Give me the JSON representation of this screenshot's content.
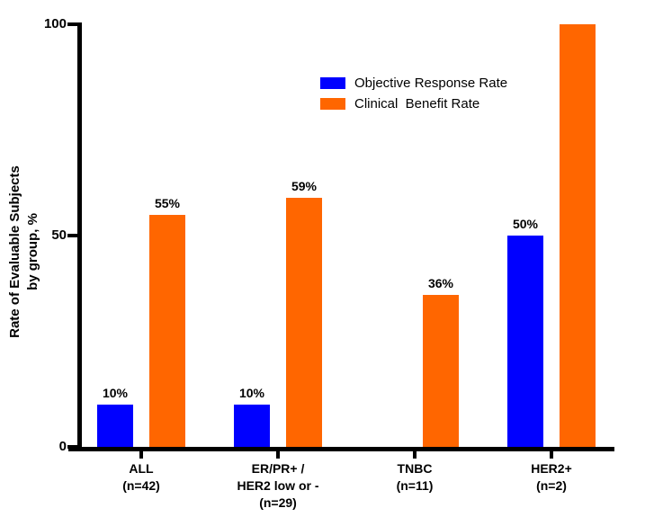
{
  "figure": {
    "background": "#FFFFFF",
    "axis_color": "#000000",
    "text_color": "#000000"
  },
  "chart_data": {
    "type": "bar",
    "title": "",
    "xlabel": "",
    "ylabel": "Rate of Evaluable Subjects\nby group, %",
    "ylim": [
      0,
      100
    ],
    "yticks": [
      0,
      50,
      100
    ],
    "grid": false,
    "legend_position": "upper center-right inside plot",
    "categories": [
      "ALL\n(n=42)",
      "ER/PR+ /\nHER2 low or -\n(n=29)",
      "TNBC\n(n=11)",
      "HER2+\n(n=2)"
    ],
    "series": [
      {
        "name": "Objective Response Rate",
        "color": "#0000FF",
        "values": [
          10,
          10,
          null,
          50
        ],
        "bar_labels": [
          "10%",
          "10%",
          "",
          "50%"
        ]
      },
      {
        "name": "Clinical  Benefit Rate",
        "color": "#FF6600",
        "values": [
          55,
          59,
          36,
          100
        ],
        "bar_labels": [
          "55%",
          "59%",
          "36%",
          ""
        ]
      }
    ]
  }
}
